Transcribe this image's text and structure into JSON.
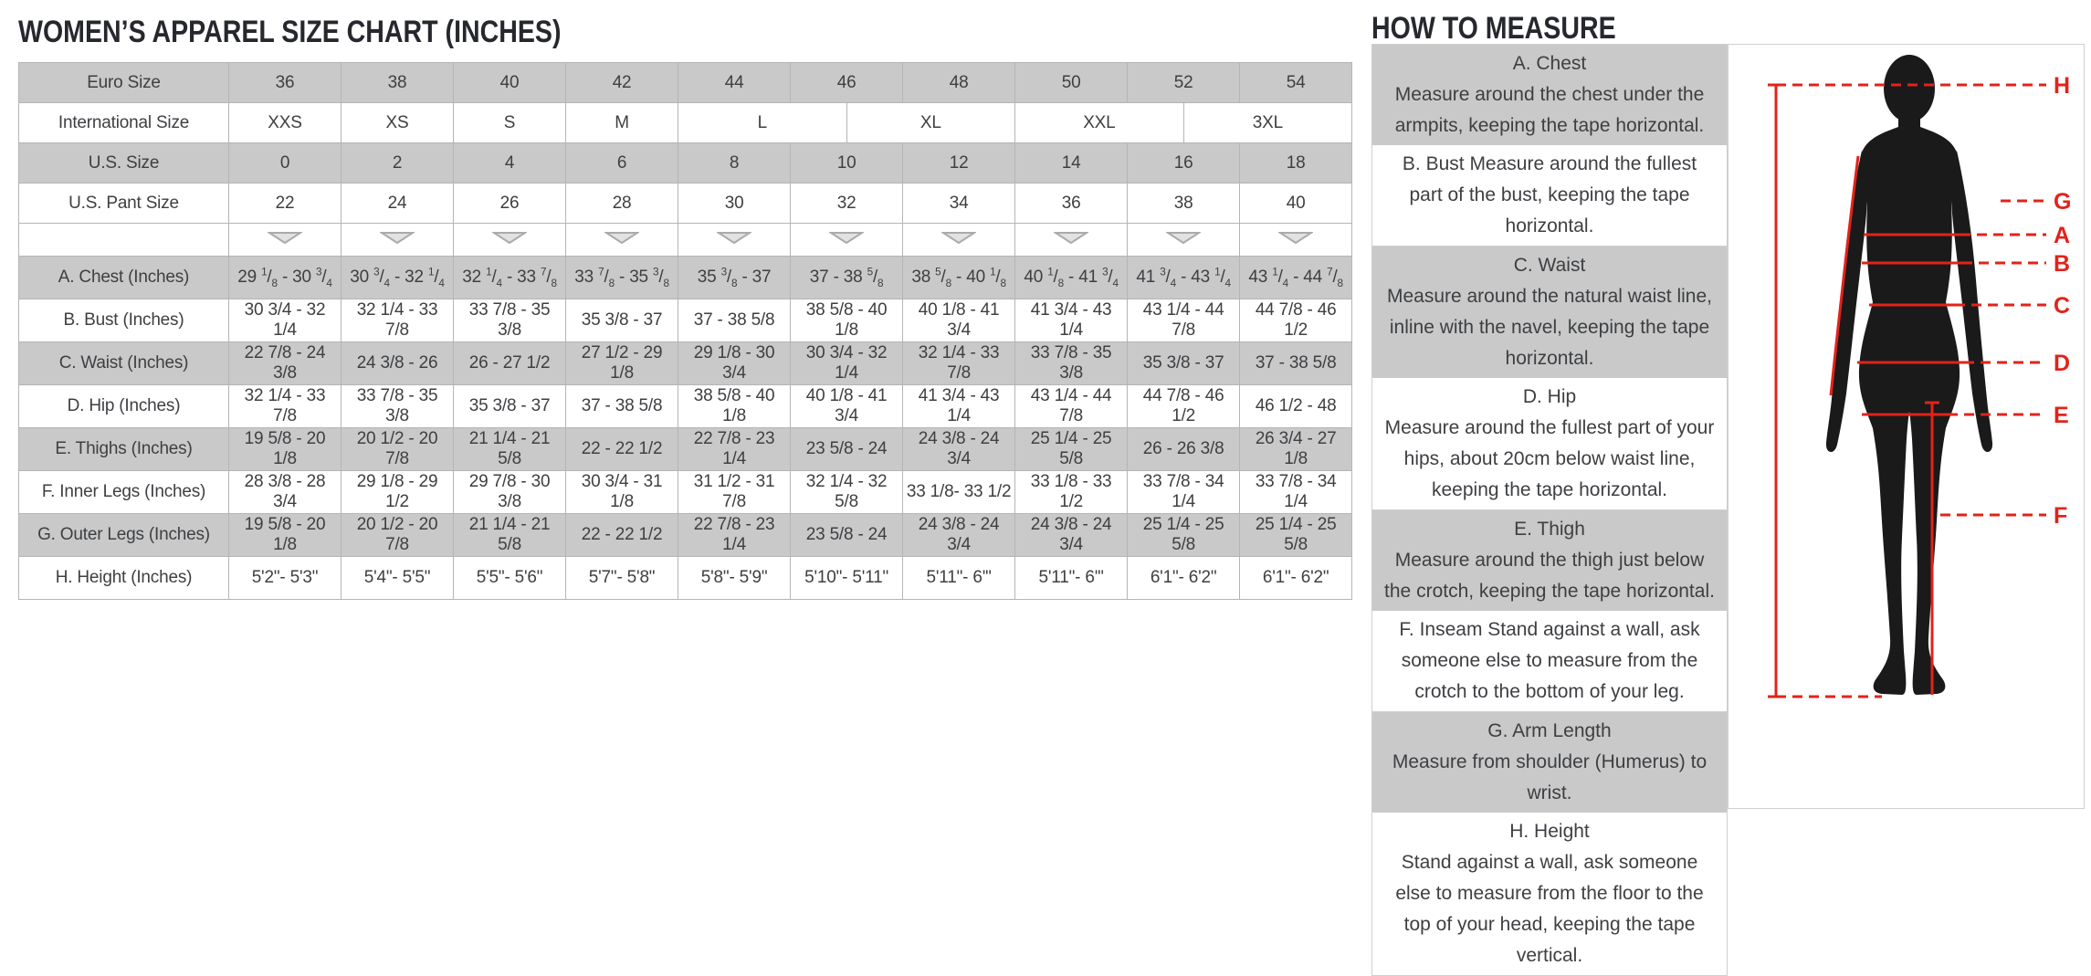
{
  "colors": {
    "row_shade": "#c9c9c9",
    "table_border": "#b5b5b5",
    "text": "#3d3f42",
    "accent_red": "#e2231a"
  },
  "size_chart": {
    "title": "WOMEN’S APPAREL SIZE CHART (INCHES)",
    "rows": [
      {
        "type": "size",
        "label": "Euro Size",
        "shaded": true,
        "cells": [
          "36",
          "38",
          "40",
          "42",
          "44",
          "46",
          "48",
          "50",
          "52",
          "54"
        ]
      },
      {
        "type": "size",
        "label": "International Size",
        "shaded": false,
        "spans": [
          2,
          2,
          2,
          2,
          3,
          3,
          3,
          3
        ],
        "cells": [
          "XXS",
          "XS",
          "S",
          "M",
          "L",
          "XL",
          "XXL",
          "3XL"
        ]
      },
      {
        "type": "size",
        "label": "U.S. Size",
        "shaded": true,
        "cells": [
          "0",
          "2",
          "4",
          "6",
          "8",
          "10",
          "12",
          "14",
          "16",
          "18"
        ]
      },
      {
        "type": "size",
        "label": "U.S. Pant Size",
        "shaded": false,
        "cells": [
          "22",
          "24",
          "26",
          "28",
          "30",
          "32",
          "34",
          "36",
          "38",
          "40"
        ]
      },
      {
        "type": "selector",
        "label": "",
        "shaded": false,
        "count": 10,
        "icon": "dropdown-triangle-icon"
      },
      {
        "type": "measure",
        "label": "A. Chest (Inches)",
        "shaded": true,
        "fractions": true,
        "cells": [
          "29 1/8 - 30 3/4",
          "30 3/4 - 32 1/4",
          "32 1/4 - 33 7/8",
          "33 7/8 - 35 3/8",
          "35 3/8 - 37",
          "37 - 38 5/8",
          "38 5/8 - 40 1/8",
          "40 1/8 - 41 3/4",
          "41 3/4 - 43 1/4",
          "43 1/4 - 44 7/8"
        ]
      },
      {
        "type": "measure",
        "label": "B. Bust (Inches)",
        "shaded": false,
        "cells": [
          "30 3/4 - 32 1/4",
          "32 1/4 - 33 7/8",
          "33 7/8 - 35 3/8",
          "35 3/8 - 37",
          "37 - 38 5/8",
          "38 5/8 - 40 1/8",
          "40 1/8 - 41 3/4",
          "41 3/4 - 43 1/4",
          "43 1/4 - 44 7/8",
          "44 7/8 - 46 1/2"
        ]
      },
      {
        "type": "measure",
        "label": "C. Waist (Inches)",
        "shaded": true,
        "cells": [
          "22 7/8 - 24 3/8",
          "24 3/8 - 26",
          "26 - 27 1/2",
          "27 1/2 - 29 1/8",
          "29 1/8 - 30 3/4",
          "30 3/4 - 32 1/4",
          "32 1/4 - 33 7/8",
          "33 7/8 - 35 3/8",
          "35 3/8 - 37",
          "37 - 38 5/8"
        ]
      },
      {
        "type": "measure",
        "label": "D. Hip (Inches)",
        "shaded": false,
        "cells": [
          "32 1/4 - 33 7/8",
          "33 7/8 - 35 3/8",
          "35 3/8 - 37",
          "37 - 38 5/8",
          "38 5/8 - 40 1/8",
          "40 1/8 - 41 3/4",
          "41 3/4 - 43 1/4",
          "43 1/4 - 44 7/8",
          "44 7/8 - 46 1/2",
          "46 1/2 - 48"
        ]
      },
      {
        "type": "measure",
        "label": "E. Thighs (Inches)",
        "shaded": true,
        "cells": [
          "19 5/8 - 20 1/8",
          "20 1/2 - 20 7/8",
          "21 1/4 - 21 5/8",
          "22 - 22 1/2",
          "22 7/8 - 23 1/4",
          "23 5/8 - 24",
          "24 3/8 - 24 3/4",
          "25 1/4 - 25 5/8",
          "26 - 26 3/8",
          "26 3/4 - 27 1/8"
        ]
      },
      {
        "type": "measure",
        "label": "F. Inner Legs (Inches)",
        "shaded": false,
        "cells": [
          "28 3/8 - 28 3/4",
          "29 1/8 - 29 1/2",
          "29 7/8 - 30 3/8",
          "30 3/4 - 31 1/8",
          "31 1/2 - 31 7/8",
          "32 1/4 - 32 5/8",
          "33 1/8- 33 1/2",
          "33 1/8 - 33 1/2",
          "33 7/8 - 34 1/4",
          "33 7/8 - 34 1/4"
        ]
      },
      {
        "type": "measure",
        "label": "G. Outer Legs (Inches)",
        "shaded": true,
        "cells": [
          "19 5/8 - 20 1/8",
          "20 1/2 - 20 7/8",
          "21 1/4 - 21 5/8",
          "22 - 22 1/2",
          "22 7/8 - 23 1/4",
          "23 5/8 - 24",
          "24 3/8 - 24 3/4",
          "24 3/8 - 24 3/4",
          "25 1/4 - 25 5/8",
          "25 1/4 - 25 5/8"
        ]
      },
      {
        "type": "measure",
        "label": "H. Height (Inches)",
        "shaded": false,
        "cells": [
          "5'2\"- 5'3\"",
          "5'4\"- 5'5\"",
          "5'5\"- 5'6\"",
          "5'7\"- 5'8\"",
          "5'8\"- 5'9\"",
          "5'10\"- 5'11\"",
          "5'11\"- 6'\"",
          "5'11\"- 6'\"",
          "6'1\"- 6'2\"",
          "6'1\"- 6'2\""
        ]
      }
    ]
  },
  "how_to_measure": {
    "title": "HOW TO MEASURE",
    "items": [
      {
        "heading": "A. Chest",
        "inline": false,
        "shaded": true,
        "text": "Measure around the chest under the armpits, keeping the tape horizontal."
      },
      {
        "heading": "B. Bust",
        "inline": true,
        "shaded": false,
        "text": "Measure around the fullest part of the bust, keeping the tape horizontal."
      },
      {
        "heading": "C. Waist",
        "inline": false,
        "shaded": true,
        "text": "Measure around the natural waist line, inline with the navel, keeping the tape horizontal."
      },
      {
        "heading": "D. Hip",
        "inline": false,
        "shaded": false,
        "text": "Measure around the fullest part of your hips, about 20cm below waist line, keeping the tape horizontal."
      },
      {
        "heading": "E. Thigh",
        "inline": false,
        "shaded": true,
        "text": "Measure around the thigh just below the crotch, keeping the tape horizontal."
      },
      {
        "heading": "F. Inseam",
        "inline": true,
        "shaded": false,
        "text": "Stand against a wall, ask someone else to measure from the crotch to the bottom of your leg."
      },
      {
        "heading": "G. Arm Length",
        "inline": false,
        "shaded": true,
        "text": "Measure from shoulder (Humerus) to wrist."
      },
      {
        "heading": "H. Height",
        "inline": false,
        "shaded": false,
        "text": "Stand against a wall, ask someone else to measure from the floor to the top of your head, keeping the tape vertical."
      }
    ],
    "figure_labels": [
      "H",
      "G",
      "A",
      "B",
      "C",
      "D",
      "E",
      "F"
    ]
  }
}
